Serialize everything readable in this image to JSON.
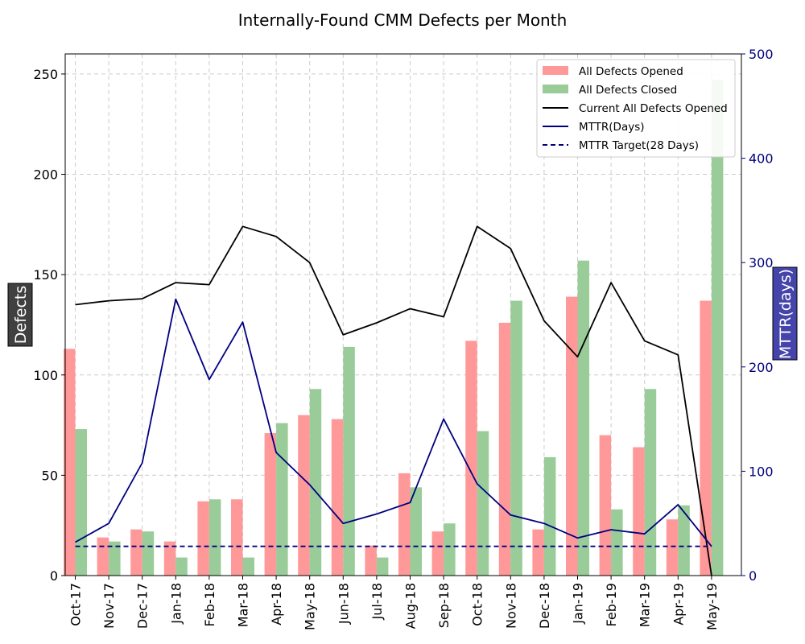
{
  "chart_data": {
    "type": "bar",
    "title": "Internally-Found CMM Defects per Month",
    "xlabel": "",
    "ylabel": "Defects",
    "y2label": "MTTR(days)",
    "ylim": [
      0,
      260
    ],
    "y2lim": [
      0,
      500
    ],
    "yticks": [
      0,
      50,
      100,
      150,
      200,
      250
    ],
    "y2ticks": [
      0,
      100,
      200,
      300,
      400,
      500
    ],
    "grid": true,
    "legend_position": "top-right",
    "categories": [
      "Oct-17",
      "Nov-17",
      "Dec-17",
      "Jan-18",
      "Feb-18",
      "Mar-18",
      "Apr-18",
      "May-18",
      "Jun-18",
      "Jul-18",
      "Aug-18",
      "Sep-18",
      "Oct-18",
      "Nov-18",
      "Dec-18",
      "Jan-19",
      "Feb-19",
      "Mar-19",
      "Apr-19",
      "May-19"
    ],
    "series": [
      {
        "name": "All Defects Opened",
        "kind": "bar",
        "axis": "left",
        "color": "#ff9999",
        "values": [
          113,
          19,
          23,
          17,
          37,
          38,
          71,
          80,
          78,
          15,
          51,
          22,
          117,
          126,
          23,
          139,
          70,
          64,
          28,
          137
        ]
      },
      {
        "name": "All Defects Closed",
        "kind": "bar",
        "axis": "left",
        "color": "#99cc99",
        "values": [
          73,
          17,
          22,
          9,
          38,
          9,
          76,
          93,
          114,
          9,
          44,
          26,
          72,
          137,
          59,
          157,
          33,
          93,
          35,
          247
        ]
      },
      {
        "name": "Current All Defects Opened",
        "kind": "line",
        "axis": "left",
        "color": "#000000",
        "dash": false,
        "values": [
          135,
          137,
          138,
          146,
          145,
          174,
          169,
          156,
          120,
          126,
          133,
          129,
          174,
          163,
          127,
          109,
          146,
          117,
          110,
          0
        ]
      },
      {
        "name": "MTTR(Days)",
        "kind": "line",
        "axis": "right",
        "color": "#000080",
        "dash": false,
        "values": [
          32,
          50,
          108,
          265,
          188,
          243,
          118,
          87,
          50,
          59,
          70,
          150,
          88,
          58,
          50,
          36,
          44,
          40,
          68,
          28
        ]
      },
      {
        "name": "MTTR Target(28 Days)",
        "kind": "line",
        "axis": "right",
        "color": "#000080",
        "dash": true,
        "values": [
          28,
          28,
          28,
          28,
          28,
          28,
          28,
          28,
          28,
          28,
          28,
          28,
          28,
          28,
          28,
          28,
          28,
          28,
          28,
          28
        ]
      }
    ]
  }
}
